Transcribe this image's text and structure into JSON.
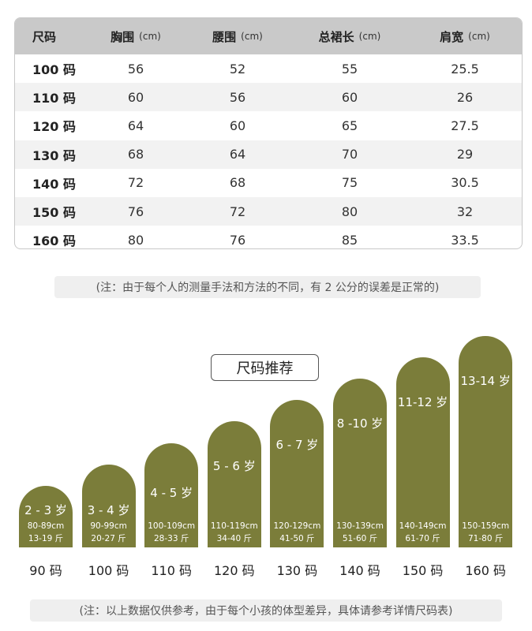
{
  "table": {
    "headers": [
      {
        "label": "尺码",
        "unit": ""
      },
      {
        "label": "胸围",
        "unit": "(cm)"
      },
      {
        "label": "腰围",
        "unit": "(cm)"
      },
      {
        "label": "总裙长",
        "unit": "(cm)"
      },
      {
        "label": "肩宽",
        "unit": "(cm)"
      }
    ],
    "rows": [
      [
        "100 码",
        "56",
        "52",
        "55",
        "25.5"
      ],
      [
        "110 码",
        "60",
        "56",
        "60",
        "26"
      ],
      [
        "120 码",
        "64",
        "60",
        "65",
        "27.5"
      ],
      [
        "130 码",
        "68",
        "64",
        "70",
        "29"
      ],
      [
        "140 码",
        "72",
        "68",
        "75",
        "30.5"
      ],
      [
        "150 码",
        "76",
        "72",
        "80",
        "32"
      ],
      [
        "160 码",
        "80",
        "76",
        "85",
        "33.5"
      ]
    ]
  },
  "note_measure": "(注：由于每个人的测量手法和方法的不同，有 2 公分的误差是正常的)",
  "recommend": {
    "title": "尺码推荐",
    "bars_color": "#7b7d3a",
    "bars": [
      {
        "age": "2 - 3 岁",
        "height": "80-89cm",
        "weight": "13-19 斤",
        "size": "90 码",
        "level": 1
      },
      {
        "age": "3 - 4 岁",
        "height": "90-99cm",
        "weight": "20-27 斤",
        "size": "100 码",
        "level": 2
      },
      {
        "age": "4 - 5 岁",
        "height": "100-109cm",
        "weight": "28-33 斤",
        "size": "110 码",
        "level": 3
      },
      {
        "age": "5 - 6 岁",
        "height": "110-119cm",
        "weight": "34-40 斤",
        "size": "120 码",
        "level": 4
      },
      {
        "age": "6 - 7 岁",
        "height": "120-129cm",
        "weight": "41-50 斤",
        "size": "130 码",
        "level": 5
      },
      {
        "age": "8 -10 岁",
        "height": "130-139cm",
        "weight": "51-60 斤",
        "size": "140 码",
        "level": 6
      },
      {
        "age": "11-12 岁",
        "height": "140-149cm",
        "weight": "61-70 斤",
        "size": "150 码",
        "level": 7
      },
      {
        "age": "13-14 岁",
        "height": "150-159cm",
        "weight": "71-80 斤",
        "size": "160 码",
        "level": 8
      }
    ]
  },
  "note_reference": "(注：以上数据仅供参考，由于每个小孩的体型差异，具体请参考详情尺码表)"
}
